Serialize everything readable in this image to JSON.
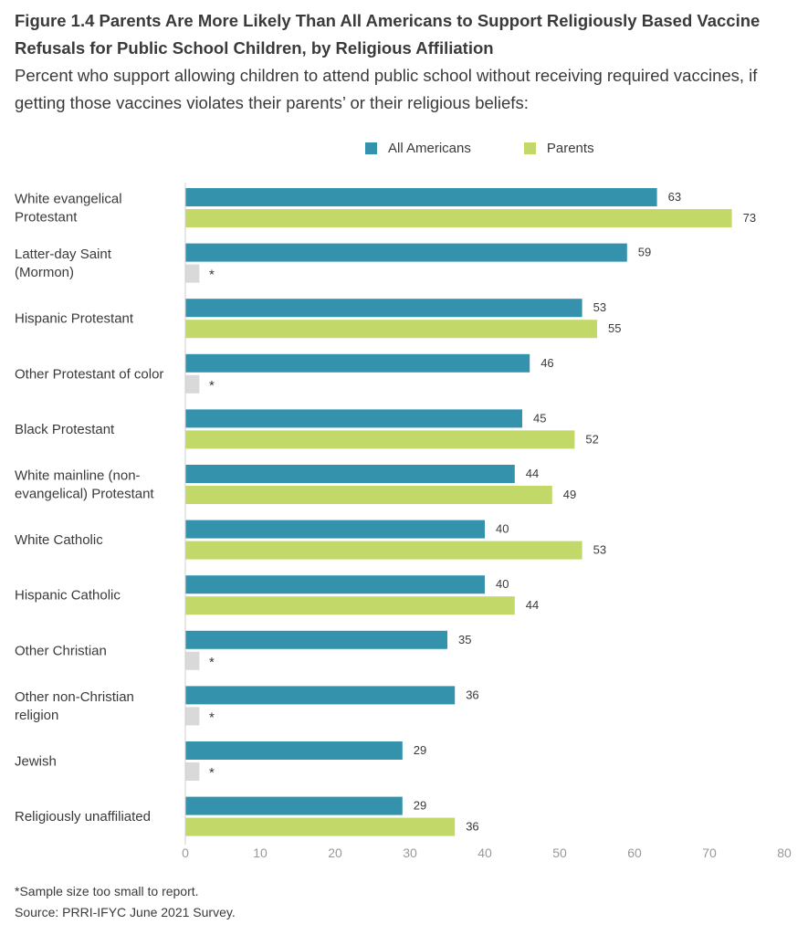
{
  "figure": {
    "title": "Figure 1.4  Parents Are More Likely Than All Americans to Support Religiously Based Vaccine Refusals for Public School Children, by Religious Affiliation",
    "subtitle": "Percent who support allowing children to attend public school without receiving required vaccines, if getting those vaccines violates their parents’ or their religious beliefs:",
    "footnote": "*Sample size too small to report.",
    "source": "Source: PRRI-IFYC June 2021 Survey."
  },
  "colors": {
    "all_americans": "#3492ad",
    "parents": "#c2d869",
    "not_reported": "#d9d9d9",
    "axis": "#cfcfcf",
    "tick_text": "#999999"
  },
  "chart_data": {
    "type": "bar",
    "orientation": "horizontal",
    "title": "Figure 1.4  Parents Are More Likely Than All Americans to Support Religiously Based Vaccine Refusals for Public School Children, by Religious Affiliation",
    "categories": [
      [
        "White evangelical",
        "Protestant"
      ],
      [
        "Latter-day Saint",
        "(Mormon)"
      ],
      [
        "Hispanic Protestant"
      ],
      [
        "Other Protestant of color"
      ],
      [
        "Black Protestant"
      ],
      [
        "White mainline (non-",
        "evangelical) Protestant"
      ],
      [
        "White Catholic"
      ],
      [
        "Hispanic Catholic"
      ],
      [
        "Other Christian"
      ],
      [
        "Other non-Christian",
        "religion"
      ],
      [
        "Jewish"
      ],
      [
        "Religiously unaffiliated"
      ]
    ],
    "series": [
      {
        "name": "All Americans",
        "values": [
          63,
          59,
          53,
          46,
          45,
          44,
          40,
          40,
          35,
          36,
          29,
          29
        ]
      },
      {
        "name": "Parents",
        "values": [
          73,
          null,
          55,
          null,
          52,
          49,
          53,
          44,
          null,
          null,
          null,
          36
        ]
      }
    ],
    "missing_marker": "*",
    "missing_bar_value": 2,
    "xlim": [
      0,
      80
    ],
    "xticks": [
      0,
      10,
      20,
      30,
      40,
      50,
      60,
      70,
      80
    ],
    "xlabel": "",
    "ylabel": "",
    "grid": false,
    "legend": "top"
  }
}
